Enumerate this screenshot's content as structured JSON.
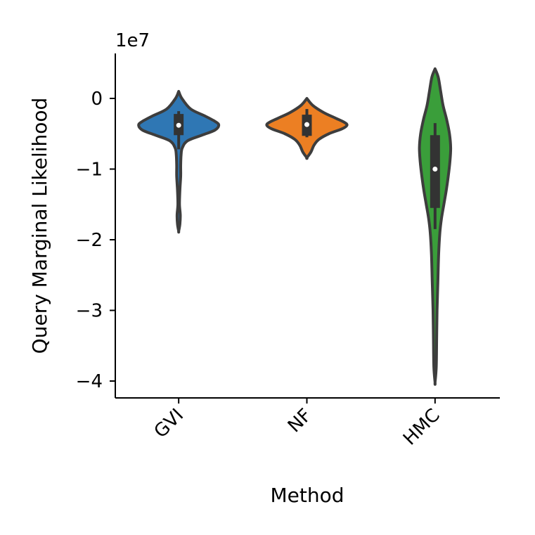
{
  "chart_data": {
    "type": "violin",
    "xlabel": "Method",
    "ylabel": "Query Marginal Likelihood",
    "y_scale_label": "1e7",
    "categories": [
      "GVI",
      "NF",
      "HMC"
    ],
    "yticks": [
      0,
      -1,
      -2,
      -3,
      -4
    ],
    "ytick_labels": [
      "0",
      "−1",
      "−2",
      "−3",
      "−4"
    ],
    "ylim": [
      -4.25,
      0.65
    ],
    "colors": {
      "GVI": "#2f77b4",
      "NF": "#ec7f23",
      "HMC": "#3a9e3a",
      "outline": "#3d3d3d",
      "box": "#333333"
    },
    "violins": [
      {
        "category": "GVI",
        "quartiles": [
          -0.52,
          -0.38,
          -0.22
        ],
        "whiskers": [
          -0.72,
          -0.18
        ],
        "median": -0.38,
        "density_profile": [
          [
            0.1,
            0.0
          ],
          [
            0.0,
            0.08
          ],
          [
            -0.15,
            0.3
          ],
          [
            -0.25,
            0.66
          ],
          [
            -0.33,
            0.92
          ],
          [
            -0.38,
            1.0
          ],
          [
            -0.45,
            0.9
          ],
          [
            -0.52,
            0.58
          ],
          [
            -0.6,
            0.22
          ],
          [
            -0.7,
            0.09
          ],
          [
            -0.8,
            0.06
          ],
          [
            -0.95,
            0.05
          ],
          [
            -1.1,
            0.05
          ],
          [
            -1.3,
            0.03
          ],
          [
            -1.5,
            0.02
          ],
          [
            -1.65,
            0.04
          ],
          [
            -1.78,
            0.03
          ],
          [
            -1.88,
            0.0
          ]
        ]
      },
      {
        "category": "NF",
        "quartiles": [
          -0.53,
          -0.37,
          -0.23
        ],
        "whiskers": [
          -0.55,
          -0.15
        ],
        "median": -0.37,
        "density_profile": [
          [
            -0.0,
            0.0
          ],
          [
            -0.1,
            0.15
          ],
          [
            -0.2,
            0.42
          ],
          [
            -0.28,
            0.72
          ],
          [
            -0.34,
            0.94
          ],
          [
            -0.38,
            1.0
          ],
          [
            -0.43,
            0.88
          ],
          [
            -0.5,
            0.55
          ],
          [
            -0.58,
            0.3
          ],
          [
            -0.66,
            0.18
          ],
          [
            -0.76,
            0.1
          ],
          [
            -0.84,
            0.0
          ]
        ]
      },
      {
        "category": "HMC",
        "quartiles": [
          -1.55,
          -1.0,
          -0.52
        ],
        "whiskers": [
          -1.85,
          -0.35
        ],
        "median": -1.0,
        "density_profile": [
          [
            0.42,
            0.0
          ],
          [
            0.3,
            0.08
          ],
          [
            0.1,
            0.14
          ],
          [
            -0.1,
            0.2
          ],
          [
            -0.3,
            0.29
          ],
          [
            -0.5,
            0.36
          ],
          [
            -0.7,
            0.39
          ],
          [
            -0.9,
            0.37
          ],
          [
            -1.1,
            0.33
          ],
          [
            -1.3,
            0.28
          ],
          [
            -1.5,
            0.22
          ],
          [
            -1.7,
            0.16
          ],
          [
            -1.9,
            0.12
          ],
          [
            -2.2,
            0.09
          ],
          [
            -2.6,
            0.07
          ],
          [
            -3.0,
            0.05
          ],
          [
            -3.4,
            0.04
          ],
          [
            -3.8,
            0.03
          ],
          [
            -4.02,
            0.0
          ]
        ]
      }
    ]
  }
}
